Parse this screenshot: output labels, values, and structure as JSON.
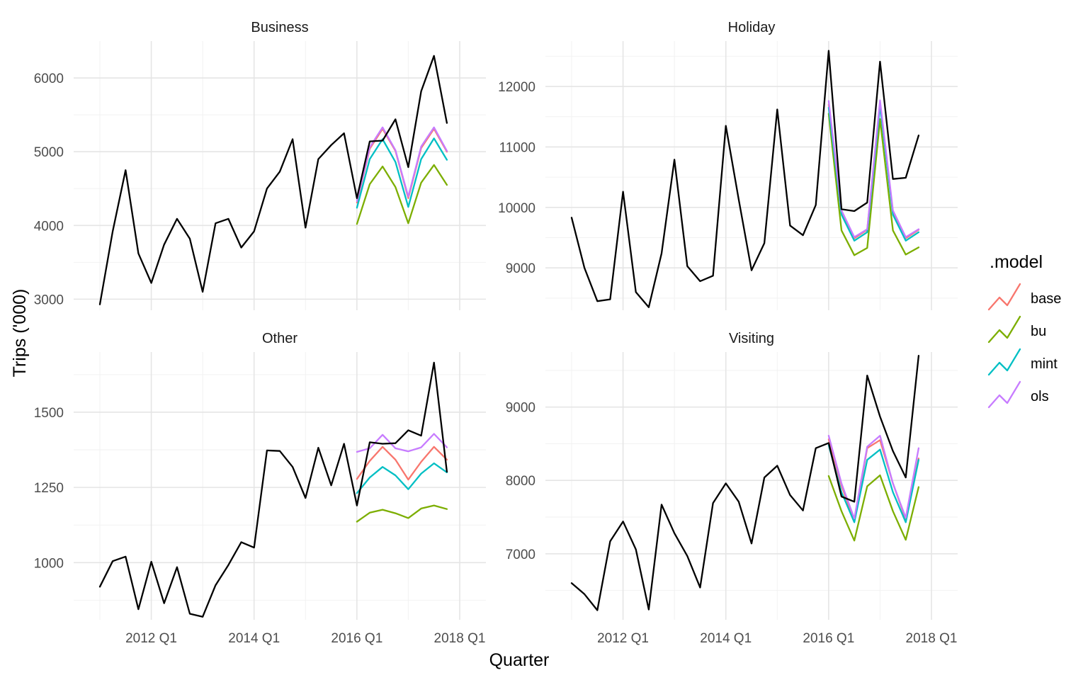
{
  "chart_data": {
    "type": "line",
    "xlabel": "Quarter",
    "ylabel": "Trips ('000)",
    "x_tick_labels": [
      "2012 Q1",
      "2014 Q1",
      "2016 Q1",
      "2018 Q1"
    ],
    "x_tick_years": [
      2012,
      2014,
      2016,
      2018
    ],
    "x_range": [
      2011,
      2018
    ],
    "x_unit": "quarter start, as decimal year",
    "legend": {
      "title": ".model",
      "position": "right",
      "entries": [
        {
          "name": "base",
          "color": "#F8766D"
        },
        {
          "name": "bu",
          "color": "#7CAE00"
        },
        {
          "name": "mint",
          "color": "#00BFC4"
        },
        {
          "name": "ols",
          "color": "#C77CFF"
        }
      ]
    },
    "actual_color": "#000000",
    "grid": true,
    "facets": [
      {
        "title": "Business",
        "ylim": [
          2850,
          6500
        ],
        "y_ticks": [
          3000,
          4000,
          5000,
          6000
        ],
        "y_minor": [
          3500,
          4500,
          5500
        ],
        "actual": {
          "x": [
            2011,
            2011.25,
            2011.5,
            2011.75,
            2012,
            2012.25,
            2012.5,
            2012.75,
            2013,
            2013.25,
            2013.5,
            2013.75,
            2014,
            2014.25,
            2014.5,
            2014.75,
            2015,
            2015.25,
            2015.5,
            2015.75,
            2016,
            2016.25,
            2016.5,
            2016.75,
            2017,
            2017.25,
            2017.5,
            2017.75
          ],
          "y": [
            2930,
            3920,
            4750,
            3620,
            3220,
            3740,
            4090,
            3820,
            3100,
            4030,
            4090,
            3700,
            3920,
            4500,
            4730,
            5170,
            3970,
            4900,
            5090,
            5250,
            4370,
            5140,
            5150,
            5440,
            4790,
            5820,
            6300,
            5390
          ]
        },
        "forecast_x": [
          2016,
          2016.25,
          2016.5,
          2016.75,
          2017,
          2017.25,
          2017.5,
          2017.75
        ],
        "series": [
          {
            "name": "base",
            "color": "#F8766D",
            "values": [
              4310,
              5040,
              5310,
              5010,
              4370,
              5050,
              5310,
              5000
            ]
          },
          {
            "name": "bu",
            "color": "#7CAE00",
            "values": [
              4020,
              4560,
              4800,
              4520,
              4030,
              4580,
              4820,
              4550
            ]
          },
          {
            "name": "mint",
            "color": "#00BFC4",
            "values": [
              4240,
              4900,
              5170,
              4860,
              4250,
              4900,
              5180,
              4890
            ]
          },
          {
            "name": "ols",
            "color": "#C77CFF",
            "values": [
              4330,
              5060,
              5330,
              5020,
              4390,
              5070,
              5330,
              5010
            ]
          }
        ]
      },
      {
        "title": "Holiday",
        "ylim": [
          8300,
          12750
        ],
        "y_ticks": [
          9000,
          10000,
          11000,
          12000
        ],
        "y_minor": [
          8500,
          9500,
          10500,
          11500,
          12500
        ],
        "actual": {
          "x": [
            2011,
            2011.25,
            2011.5,
            2011.75,
            2012,
            2012.25,
            2012.5,
            2012.75,
            2013,
            2013.25,
            2013.5,
            2013.75,
            2014,
            2014.25,
            2014.5,
            2014.75,
            2015,
            2015.25,
            2015.5,
            2015.75,
            2016,
            2016.25,
            2016.5,
            2016.75,
            2017,
            2017.25,
            2017.5,
            2017.75
          ],
          "y": [
            9830,
            9000,
            8450,
            8480,
            10260,
            8600,
            8350,
            9240,
            10790,
            9030,
            8780,
            8870,
            11350,
            10130,
            8960,
            9410,
            11620,
            9700,
            9540,
            10040,
            12590,
            9970,
            9940,
            10080,
            12410,
            10470,
            10490,
            11190
          ]
        },
        "forecast_x": [
          2016,
          2016.25,
          2016.5,
          2016.75,
          2017,
          2017.25,
          2017.5,
          2017.75
        ],
        "series": [
          {
            "name": "base",
            "color": "#F8766D",
            "values": [
              11700,
              9920,
              9490,
              9630,
              11720,
              9920,
              9490,
              9630
            ]
          },
          {
            "name": "bu",
            "color": "#7CAE00",
            "values": [
              11550,
              9620,
              9210,
              9330,
              11460,
              9620,
              9220,
              9340
            ]
          },
          {
            "name": "mint",
            "color": "#00BFC4",
            "values": [
              11650,
              9880,
              9450,
              9590,
              11680,
              9880,
              9450,
              9590
            ]
          },
          {
            "name": "ols",
            "color": "#C77CFF",
            "values": [
              11760,
              9950,
              9510,
              9640,
              11770,
              9950,
              9510,
              9640
            ]
          }
        ]
      },
      {
        "title": "Other",
        "ylim": [
          810,
          1700
        ],
        "y_ticks": [
          1000,
          1250,
          1500
        ],
        "y_minor": [
          875,
          1125,
          1375,
          1625
        ],
        "actual": {
          "x": [
            2011,
            2011.25,
            2011.5,
            2011.75,
            2012,
            2012.25,
            2012.5,
            2012.75,
            2013,
            2013.25,
            2013.5,
            2013.75,
            2014,
            2014.25,
            2014.5,
            2014.75,
            2015,
            2015.25,
            2015.5,
            2015.75,
            2016,
            2016.25,
            2016.5,
            2016.75,
            2017,
            2017.25,
            2017.5,
            2017.75
          ],
          "y": [
            920,
            1005,
            1020,
            845,
            1003,
            865,
            985,
            830,
            820,
            925,
            992,
            1068,
            1050,
            1373,
            1371,
            1318,
            1215,
            1382,
            1257,
            1395,
            1190,
            1400,
            1395,
            1397,
            1440,
            1422,
            1665,
            1302
          ]
        },
        "forecast_x": [
          2016,
          2016.25,
          2016.5,
          2016.75,
          2017,
          2017.25,
          2017.5,
          2017.75
        ],
        "series": [
          {
            "name": "base",
            "color": "#F8766D",
            "values": [
              1278,
              1338,
              1385,
              1342,
              1276,
              1335,
              1385,
              1342
            ]
          },
          {
            "name": "bu",
            "color": "#7CAE00",
            "values": [
              1136,
              1166,
              1176,
              1164,
              1148,
              1180,
              1190,
              1178
            ]
          },
          {
            "name": "mint",
            "color": "#00BFC4",
            "values": [
              1231,
              1283,
              1318,
              1290,
              1244,
              1296,
              1330,
              1300
            ]
          },
          {
            "name": "ols",
            "color": "#C77CFF",
            "values": [
              1368,
              1380,
              1425,
              1380,
              1370,
              1383,
              1428,
              1383
            ]
          }
        ]
      },
      {
        "title": "Visiting",
        "ylim": [
          6100,
          9750
        ],
        "y_ticks": [
          7000,
          8000,
          9000
        ],
        "y_minor": [
          6500,
          7500,
          8500,
          9500
        ],
        "actual": {
          "x": [
            2011,
            2011.25,
            2011.5,
            2011.75,
            2012,
            2012.25,
            2012.5,
            2012.75,
            2013,
            2013.25,
            2013.5,
            2013.75,
            2014,
            2014.25,
            2014.5,
            2014.75,
            2015,
            2015.25,
            2015.5,
            2015.75,
            2016,
            2016.25,
            2016.5,
            2016.75,
            2017,
            2017.25,
            2017.5,
            2017.75
          ],
          "y": [
            6600,
            6450,
            6230,
            7170,
            7440,
            7060,
            6240,
            7670,
            7280,
            6970,
            6540,
            7690,
            7960,
            7710,
            7140,
            8040,
            8200,
            7800,
            7590,
            8440,
            8510,
            7780,
            7710,
            9430,
            8870,
            8400,
            8040,
            9700
          ]
        },
        "forecast_x": [
          2016,
          2016.25,
          2016.5,
          2016.75,
          2017,
          2017.25,
          2017.5,
          2017.75
        ],
        "series": [
          {
            "name": "base",
            "color": "#F8766D",
            "values": [
              8560,
              7930,
              7450,
              8440,
              8550,
              7960,
              7470,
              8300
            ]
          },
          {
            "name": "bu",
            "color": "#7CAE00",
            "values": [
              8060,
              7580,
              7180,
              7920,
              8070,
              7580,
              7190,
              7910
            ]
          },
          {
            "name": "mint",
            "color": "#00BFC4",
            "values": [
              8480,
              7840,
              7430,
              8280,
              8420,
              7840,
              7430,
              8280
            ]
          },
          {
            "name": "ols",
            "color": "#C77CFF",
            "values": [
              8610,
              7960,
              7480,
              8460,
              8610,
              7960,
              7490,
              8440
            ]
          }
        ]
      }
    ]
  }
}
